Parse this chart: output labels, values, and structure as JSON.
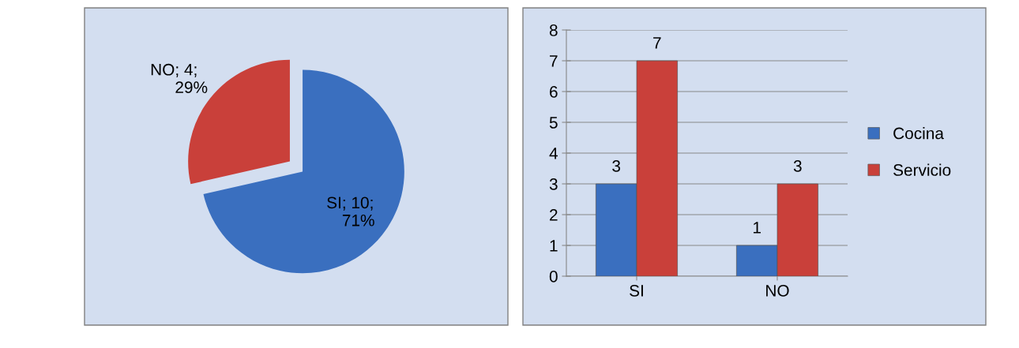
{
  "chart_data": [
    {
      "type": "pie",
      "categories": [
        "SI",
        "NO"
      ],
      "values": [
        10,
        4
      ],
      "colors": [
        "#3a6fbf",
        "#c9403a"
      ],
      "value_labels": [
        "; 10;\n71%",
        "; 4;\n29%"
      ]
    },
    {
      "type": "bar",
      "categories": [
        "SI",
        "NO"
      ],
      "series": [
        {
          "name": "Cocina",
          "color": "#3a6fbf",
          "values": [
            3,
            1
          ]
        },
        {
          "name": "Servicio",
          "color": "#c9403a",
          "values": [
            7,
            3
          ]
        }
      ],
      "ylim": [
        0,
        8
      ],
      "yticks": [
        0,
        1,
        2,
        3,
        4,
        5,
        6,
        7,
        8
      ],
      "grid": "y",
      "legend": "right",
      "data_labels": true
    }
  ]
}
